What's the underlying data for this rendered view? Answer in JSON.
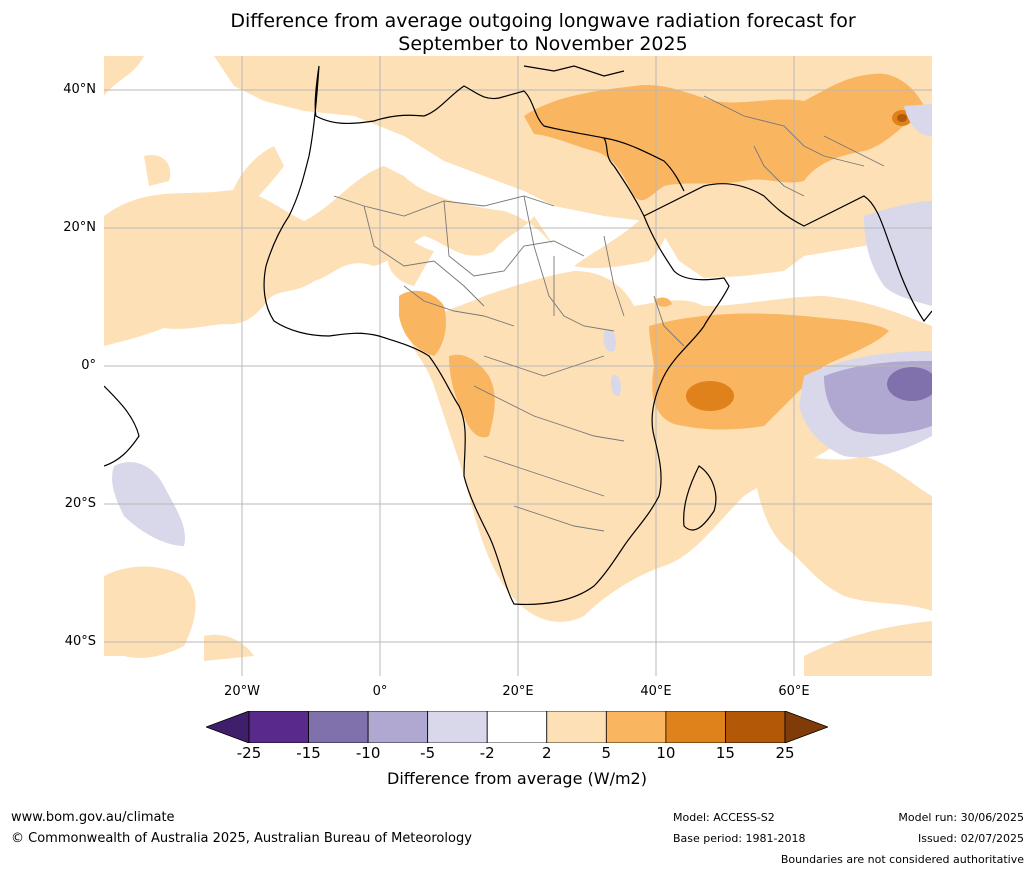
{
  "title": {
    "line1": "Difference from average outgoing longwave radiation forecast for",
    "line2": "September to November 2025"
  },
  "map": {
    "lat_labels": [
      "40°N",
      "20°N",
      "0°",
      "20°S",
      "40°S"
    ],
    "lon_labels": [
      "20°W",
      "0°",
      "20°E",
      "40°E",
      "60°E"
    ]
  },
  "legend": {
    "title": "Difference from average (W/m2)",
    "ticks": [
      "-25",
      "-15",
      "-10",
      "-5",
      "-2",
      "2",
      "5",
      "10",
      "15",
      "25"
    ],
    "colors": [
      "#3f1f6b",
      "#5a2a8a",
      "#8071ad",
      "#b0a8d0",
      "#d8d8ea",
      "#ffffff",
      "#fee0b6",
      "#fab561",
      "#e0821c",
      "#b35806",
      "#7f3b08"
    ]
  },
  "footer": {
    "website": "www.bom.gov.au/climate",
    "copyright": "© Commonwealth of Australia 2025, Australian Bureau of Meteorology",
    "model": "Model: ACCESS-S2",
    "base_period": "Base period: 1981-2018",
    "model_run": "Model run: 30/06/2025",
    "issued": "Issued: 02/07/2025",
    "disclaimer": "Boundaries are not considered authoritative"
  }
}
